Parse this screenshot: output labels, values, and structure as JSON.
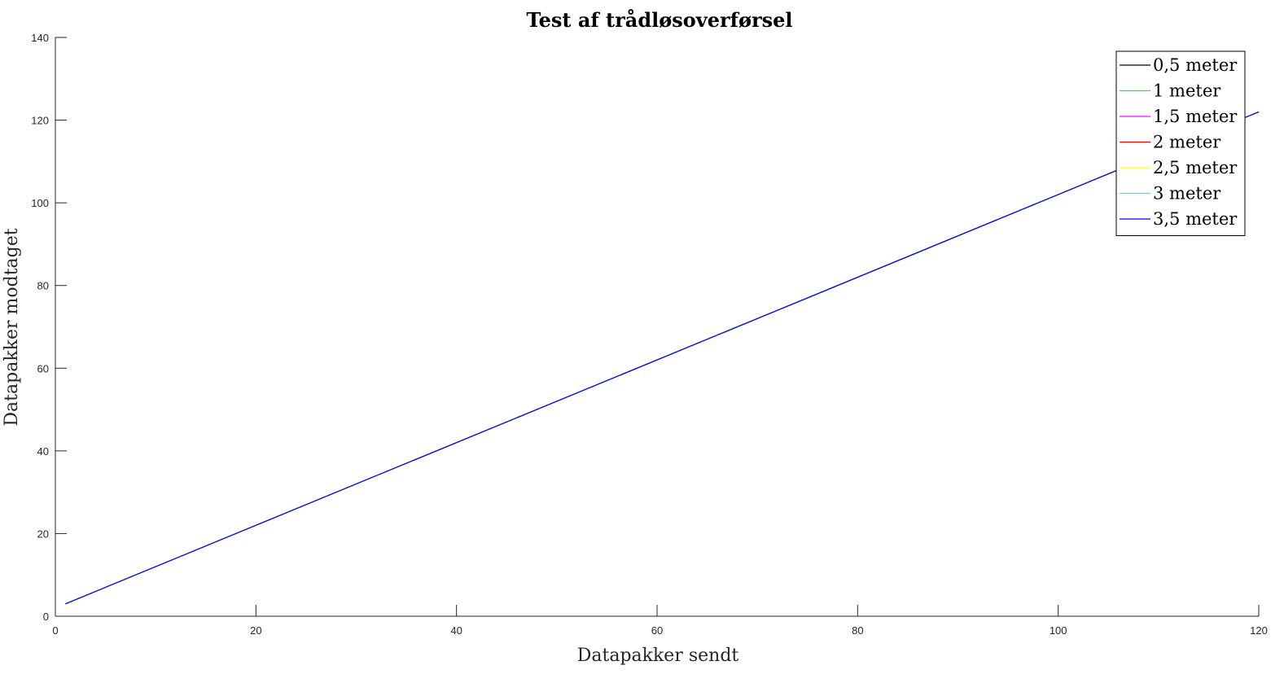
{
  "chart_data": {
    "type": "line",
    "title": "Test af trådløsoverførsel",
    "xlabel": "Datapakker sendt",
    "ylabel": "Datapakker modtaget",
    "xlim": [
      0,
      120
    ],
    "ylim": [
      0,
      140
    ],
    "xticks": [
      0,
      20,
      40,
      60,
      80,
      100,
      120
    ],
    "yticks": [
      0,
      20,
      40,
      60,
      80,
      100,
      120,
      140
    ],
    "grid": false,
    "legend_position": "top-right",
    "series": [
      {
        "name": "0,5 meter",
        "color": "#000000",
        "x": [
          1,
          120
        ],
        "y": [
          3,
          122
        ]
      },
      {
        "name": "1 meter",
        "color": "#00ff00",
        "x": [
          1,
          120
        ],
        "y": [
          3,
          122
        ]
      },
      {
        "name": "1,5 meter",
        "color": "#ff00ff",
        "x": [
          1,
          120
        ],
        "y": [
          3,
          122
        ]
      },
      {
        "name": "2 meter",
        "color": "#ff0000",
        "x": [
          1,
          120
        ],
        "y": [
          3,
          122
        ]
      },
      {
        "name": "2,5 meter",
        "color": "#ffff00",
        "x": [
          1,
          120
        ],
        "y": [
          3,
          122
        ]
      },
      {
        "name": "3 meter",
        "color": "#00ffff",
        "x": [
          1,
          120
        ],
        "y": [
          3,
          122
        ]
      },
      {
        "name": "3,5 meter",
        "color": "#0000ff",
        "x": [
          1,
          120
        ],
        "y": [
          3,
          122
        ]
      }
    ]
  }
}
